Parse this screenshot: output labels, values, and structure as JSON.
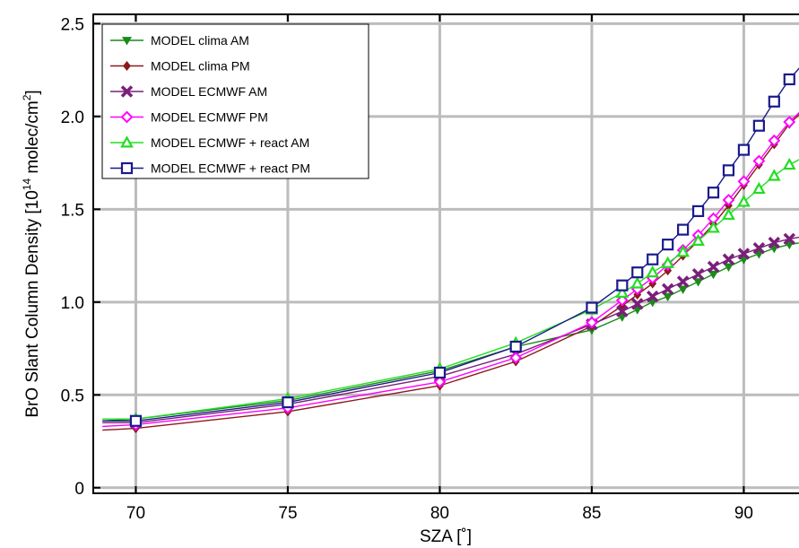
{
  "chart_data": {
    "type": "line",
    "xlabel": "SZA [˚]",
    "ylabel": "BrO Slant Column Density [10",
    "ylabel_sup14": "14",
    "ylabel_mid": " molec/cm",
    "ylabel_sup2": "2",
    "ylabel_end": "]",
    "xlim": [
      68.6,
      92.2
    ],
    "ylim": [
      -0.03,
      2.55
    ],
    "xticks": [
      70,
      75,
      80,
      85,
      90
    ],
    "yticks": [
      0,
      0.5,
      1.0,
      1.5,
      2.0,
      2.5
    ],
    "xtick_labels": [
      "70",
      "75",
      "80",
      "85",
      "90"
    ],
    "ytick_labels": [
      "0",
      "0.5",
      "1.0",
      "1.5",
      "2.0",
      "2.5"
    ],
    "grid": true,
    "legend_position": "top-left",
    "series": [
      {
        "name": "MODEL clima AM",
        "color": "#1a8a1a",
        "marker": "triangle-down",
        "x": [
          68.9,
          70,
          75,
          80,
          82.5,
          85,
          86,
          86.5,
          87,
          87.5,
          88,
          88.5,
          89,
          89.5,
          90,
          90.5,
          91,
          91.5,
          92.2
        ],
        "y": [
          0.36,
          0.37,
          0.47,
          0.63,
          0.76,
          0.85,
          0.92,
          0.96,
          1.0,
          1.03,
          1.07,
          1.11,
          1.15,
          1.19,
          1.23,
          1.26,
          1.29,
          1.31,
          1.33
        ]
      },
      {
        "name": "MODEL clima PM",
        "color": "#8b1a1a",
        "marker": "diamond",
        "x": [
          68.9,
          70,
          75,
          80,
          82.5,
          85,
          86,
          86.5,
          87,
          87.5,
          88,
          88.5,
          89,
          89.5,
          90,
          90.5,
          91,
          91.5,
          92.2
        ],
        "y": [
          0.31,
          0.32,
          0.41,
          0.55,
          0.68,
          0.87,
          0.98,
          1.04,
          1.1,
          1.17,
          1.25,
          1.33,
          1.42,
          1.52,
          1.63,
          1.74,
          1.85,
          1.96,
          2.07
        ]
      },
      {
        "name": "MODEL ECMWF AM",
        "color": "#7a1f7a",
        "marker": "x",
        "x": [
          68.9,
          70,
          75,
          80,
          82.5,
          85,
          86,
          86.5,
          87,
          87.5,
          88,
          88.5,
          89,
          89.5,
          90,
          90.5,
          91,
          91.5,
          92.2
        ],
        "y": [
          0.35,
          0.35,
          0.45,
          0.6,
          0.72,
          0.88,
          0.95,
          0.99,
          1.03,
          1.07,
          1.11,
          1.15,
          1.19,
          1.23,
          1.26,
          1.29,
          1.32,
          1.34,
          1.36
        ]
      },
      {
        "name": "MODEL ECMWF PM",
        "color": "#ff00ff",
        "marker": "diamond-open",
        "x": [
          68.9,
          70,
          75,
          80,
          82.5,
          85,
          86,
          86.5,
          87,
          87.5,
          88,
          88.5,
          89,
          89.5,
          90,
          90.5,
          91,
          91.5,
          92.2
        ],
        "y": [
          0.33,
          0.34,
          0.43,
          0.57,
          0.7,
          0.89,
          1.01,
          1.07,
          1.13,
          1.2,
          1.28,
          1.36,
          1.45,
          1.55,
          1.65,
          1.76,
          1.87,
          1.97,
          2.08
        ]
      },
      {
        "name": "MODEL ECMWF + react AM",
        "color": "#22dd22",
        "marker": "triangle-up-open",
        "x": [
          68.9,
          70,
          75,
          80,
          82.5,
          85,
          86,
          86.5,
          87,
          87.5,
          88,
          88.5,
          89,
          89.5,
          90,
          90.5,
          91,
          91.5,
          92.2
        ],
        "y": [
          0.37,
          0.37,
          0.48,
          0.64,
          0.78,
          0.96,
          1.05,
          1.1,
          1.16,
          1.21,
          1.27,
          1.33,
          1.4,
          1.47,
          1.54,
          1.61,
          1.68,
          1.74,
          1.8
        ]
      },
      {
        "name": "MODEL ECMWF + react PM",
        "color": "#1a1a8c",
        "marker": "square-open",
        "x": [
          68.9,
          70,
          75,
          80,
          82.5,
          85,
          86,
          86.5,
          87,
          87.5,
          88,
          88.5,
          89,
          89.5,
          90,
          90.5,
          91,
          91.5,
          92.2
        ],
        "y": [
          0.36,
          0.36,
          0.46,
          0.62,
          0.76,
          0.97,
          1.09,
          1.16,
          1.23,
          1.31,
          1.39,
          1.49,
          1.59,
          1.71,
          1.82,
          1.95,
          2.08,
          2.2,
          2.33
        ]
      }
    ]
  }
}
